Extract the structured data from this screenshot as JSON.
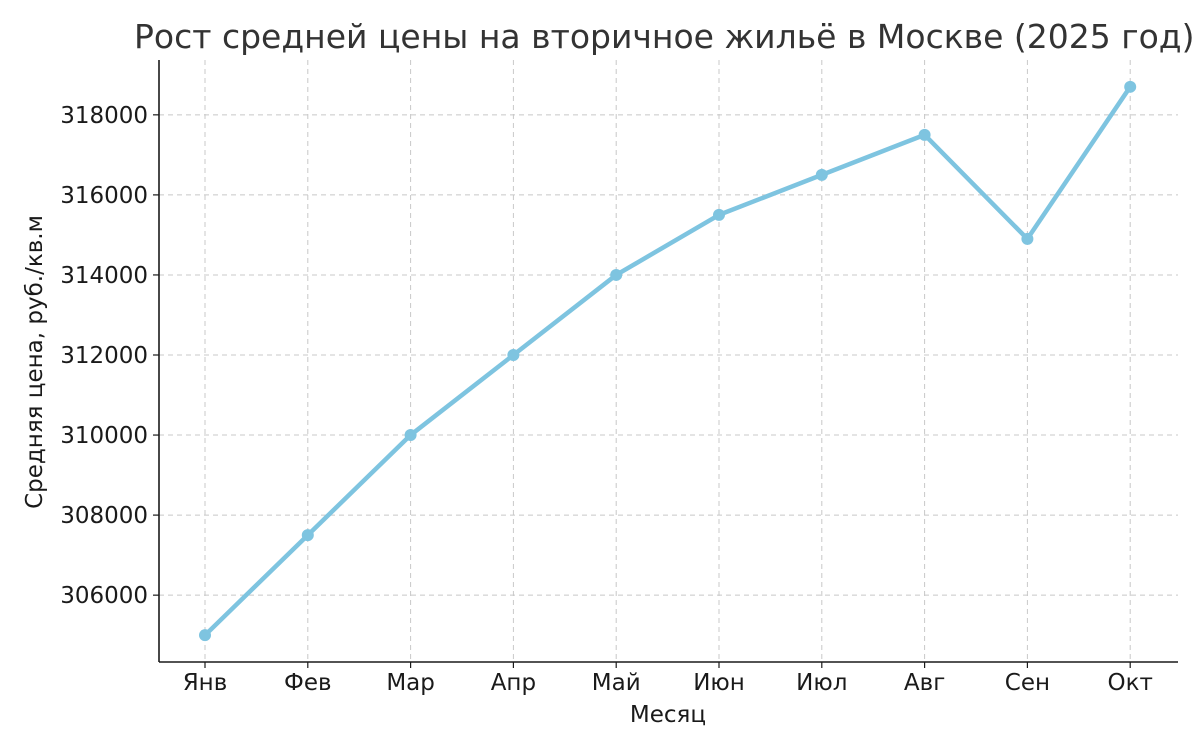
{
  "chart_data": {
    "type": "line",
    "title": "Рост средней цены на вторичное жильё в Москве (2025 год)",
    "xlabel": "Месяц",
    "ylabel": "Средняя цена, руб./кв.м",
    "categories": [
      "Янв",
      "Фев",
      "Мар",
      "Апр",
      "Май",
      "Июн",
      "Июл",
      "Авг",
      "Сен",
      "Окт"
    ],
    "series": [
      {
        "values": [
          305000,
          307500,
          310000,
          312000,
          314000,
          315500,
          316500,
          317500,
          314900,
          318700
        ],
        "color": "#7ec4e0"
      }
    ],
    "yticks": [
      306000,
      308000,
      310000,
      312000,
      314000,
      316000,
      318000
    ],
    "ytick_labels": [
      "306000",
      "308000",
      "310000",
      "312000",
      "314000",
      "316000",
      "318000"
    ],
    "ylim": [
      304330,
      319370
    ],
    "grid": true,
    "legend": "none",
    "colors": {
      "axis": "#1a1a1a",
      "grid": "#c8c8c8",
      "title": "#333333"
    }
  }
}
